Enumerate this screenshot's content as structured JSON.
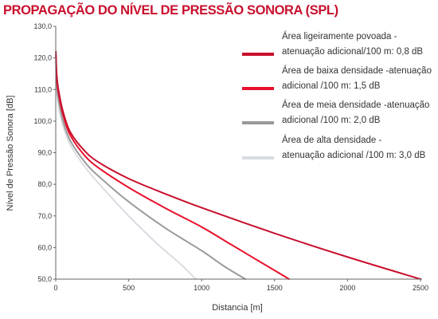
{
  "chart_data": {
    "type": "line",
    "title": "PROPAGAÇÃO DO NÍVEL DE PRESSÃO SONORA (SPL)",
    "xlabel": "Distancia [m]",
    "ylabel": "Nível de Pressão Sonora [dB]",
    "xlim": [
      0,
      2500
    ],
    "ylim": [
      50,
      130
    ],
    "x_ticks": [
      "0",
      "500",
      "1000",
      "1500",
      "2000",
      "2500"
    ],
    "y_ticks": [
      "50,0",
      "60,0",
      "70,0",
      "80,0",
      "90,0",
      "100,0",
      "110,0",
      "120,0",
      "130,0"
    ],
    "grid": false,
    "legend_position": "top-right",
    "series": [
      {
        "name_lines": [
          "Área ligeiramente povoada -",
          "atenuação adicional/100 m: 0,8 dB"
        ],
        "color": "#c8102e",
        "x": [
          1,
          5,
          10,
          20,
          50,
          100,
          200,
          300,
          500,
          750,
          1000,
          1500,
          2000,
          2500
        ],
        "y": [
          122,
          116,
          113,
          109.5,
          103,
          96.5,
          90.5,
          86.8,
          81.8,
          77,
          72.6,
          64.5,
          57,
          50
        ]
      },
      {
        "name_lines": [
          "Área de baixa densidade -atenuação",
          "adicional /100 m: 1,5 dB"
        ],
        "color": "#e8112d",
        "x": [
          1,
          5,
          10,
          20,
          50,
          100,
          200,
          300,
          500,
          750,
          1000,
          1200,
          1400,
          1600
        ],
        "y": [
          121,
          115,
          112,
          108.5,
          102,
          95.5,
          89,
          85,
          79,
          72.5,
          66.5,
          61,
          55.5,
          50
        ]
      },
      {
        "name_lines": [
          "Área de meia densidade -atenuação",
          "adicional /100 m: 2,0 dB"
        ],
        "color": "#9a9a9a",
        "x": [
          1,
          5,
          10,
          20,
          50,
          100,
          200,
          300,
          500,
          750,
          1000,
          1150,
          1300
        ],
        "y": [
          119,
          113,
          110,
          106.5,
          100,
          93.8,
          87,
          82.3,
          74.5,
          66.2,
          59,
          54.2,
          50
        ]
      },
      {
        "name_lines": [
          "Área de alta densidade -",
          "atenuação adicional /100 m: 3,0 dB"
        ],
        "color": "#d9dde2",
        "x": [
          1,
          5,
          10,
          20,
          50,
          100,
          200,
          300,
          500,
          700,
          850,
          960
        ],
        "y": [
          117,
          111,
          108,
          104.5,
          98.5,
          92.5,
          85.5,
          80,
          70,
          61,
          55,
          50
        ]
      }
    ]
  }
}
